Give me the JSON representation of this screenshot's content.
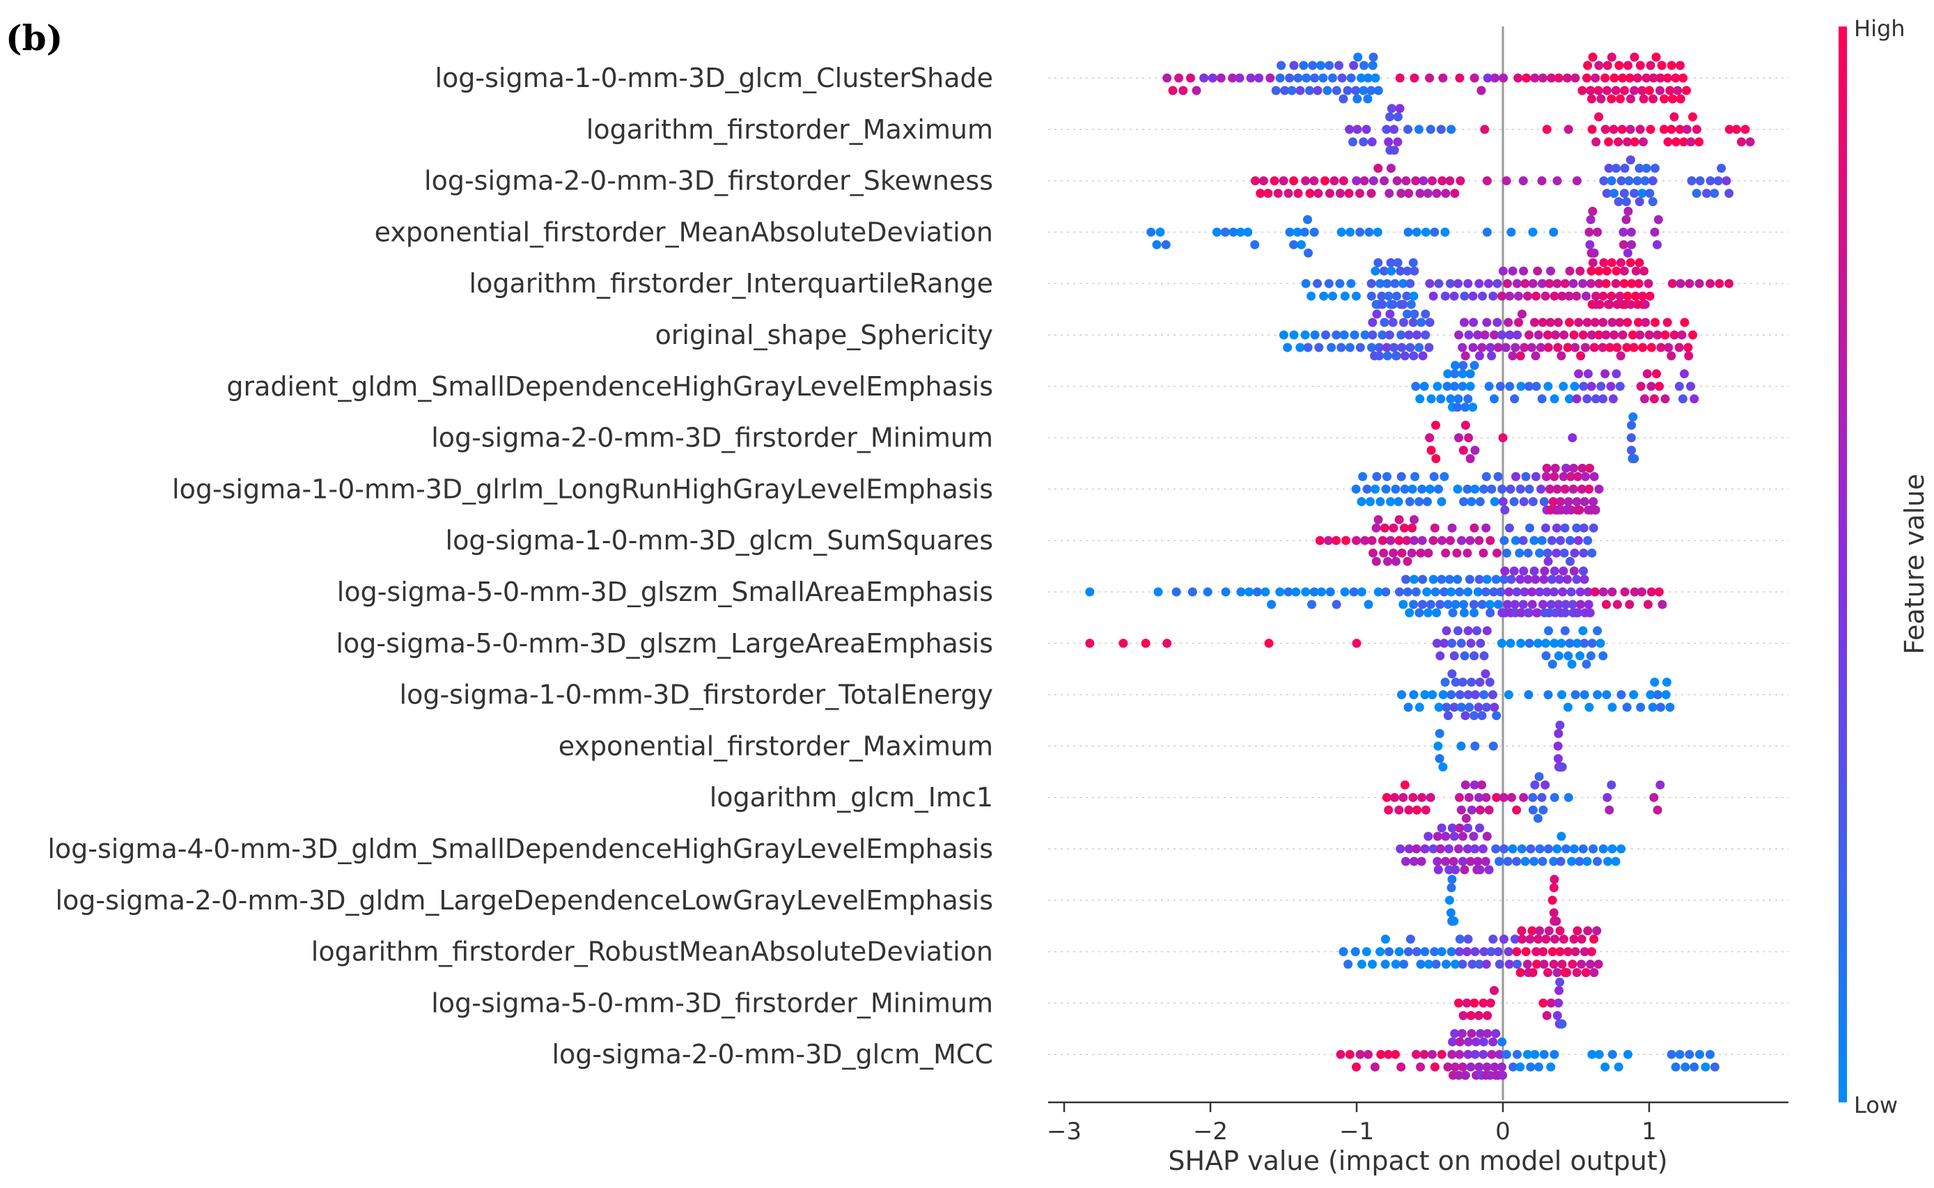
{
  "panel_label": "(b)",
  "chart_data": {
    "type": "scatter",
    "subtype": "shap-beeswarm",
    "xlabel": "SHAP value (impact on model output)",
    "xlim": [
      -3.1,
      1.9
    ],
    "xticks": [
      -3,
      -2,
      -1,
      0,
      1
    ],
    "xtick_labels": [
      "−3",
      "−2",
      "−1",
      "0",
      "1"
    ],
    "colorbar": {
      "label": "Feature value",
      "high": "High",
      "low": "Low",
      "high_color": "#ff0052",
      "low_color": "#008bfb"
    },
    "features": [
      {
        "name": "log-sigma-1-0-mm-3D_glcm_ClusterShade",
        "clusters": [
          {
            "from": -2.3,
            "to": -2.1,
            "n": 6,
            "c": 0.75
          },
          {
            "from": -2.05,
            "to": -1.6,
            "n": 8,
            "c": 0.55
          },
          {
            "from": -1.55,
            "to": -1.0,
            "n": 28,
            "c": 0.25
          },
          {
            "from": -1.0,
            "to": -0.85,
            "n": 12,
            "c": 0.05
          },
          {
            "from": -0.7,
            "to": -0.3,
            "n": 5,
            "c": 0.8
          },
          {
            "from": -0.2,
            "to": 0.0,
            "n": 5,
            "c": 0.6
          },
          {
            "from": 0.1,
            "to": 0.5,
            "n": 8,
            "c": 0.85
          },
          {
            "from": 0.55,
            "to": 1.25,
            "n": 50,
            "c": 0.92
          }
        ]
      },
      {
        "name": "logarithm_firstorder_Maximum",
        "clusters": [
          {
            "from": -1.05,
            "to": -0.9,
            "n": 6,
            "c": 0.35
          },
          {
            "from": -0.8,
            "to": -0.7,
            "n": 10,
            "c": 0.4
          },
          {
            "from": -0.65,
            "to": -0.35,
            "n": 5,
            "c": 0.2
          },
          {
            "from": -0.15,
            "to": -0.1,
            "n": 1,
            "c": 0.85
          },
          {
            "from": 0.3,
            "to": 0.45,
            "n": 2,
            "c": 0.9
          },
          {
            "from": 0.6,
            "to": 1.0,
            "n": 14,
            "c": 0.9
          },
          {
            "from": 1.1,
            "to": 1.35,
            "n": 12,
            "c": 0.9
          },
          {
            "from": 1.55,
            "to": 1.7,
            "n": 5,
            "c": 0.9
          }
        ]
      },
      {
        "name": "log-sigma-2-0-mm-3D_firstorder_Skewness",
        "clusters": [
          {
            "from": -1.7,
            "to": -1.05,
            "n": 20,
            "c": 0.92
          },
          {
            "from": -1.0,
            "to": -0.3,
            "n": 24,
            "c": 0.7
          },
          {
            "from": -0.1,
            "to": 0.5,
            "n": 6,
            "c": 0.75
          },
          {
            "from": 0.7,
            "to": 1.05,
            "n": 24,
            "c": 0.2
          },
          {
            "from": 1.3,
            "to": 1.55,
            "n": 10,
            "c": 0.3
          }
        ]
      },
      {
        "name": "exponential_firstorder_MeanAbsoluteDeviation",
        "clusters": [
          {
            "from": -2.4,
            "to": -2.3,
            "n": 4,
            "c": 0.05
          },
          {
            "from": -1.95,
            "to": -1.7,
            "n": 6,
            "c": 0.05
          },
          {
            "from": -1.45,
            "to": -1.3,
            "n": 8,
            "c": 0.05
          },
          {
            "from": -1.1,
            "to": -0.85,
            "n": 5,
            "c": 0.05
          },
          {
            "from": -0.65,
            "to": -0.4,
            "n": 5,
            "c": 0.05
          },
          {
            "from": -0.1,
            "to": 0.35,
            "n": 4,
            "c": 0.05
          },
          {
            "from": 0.58,
            "to": 0.64,
            "n": 8,
            "c": 0.6
          },
          {
            "from": 0.82,
            "to": 0.88,
            "n": 7,
            "c": 0.6
          },
          {
            "from": 1.03,
            "to": 1.07,
            "n": 3,
            "c": 0.5
          }
        ]
      },
      {
        "name": "logarithm_firstorder_InterquartileRange",
        "clusters": [
          {
            "from": -1.35,
            "to": -1.0,
            "n": 10,
            "c": 0.1
          },
          {
            "from": -0.9,
            "to": -0.6,
            "n": 30,
            "c": 0.15
          },
          {
            "from": -0.5,
            "to": 0.0,
            "n": 16,
            "c": 0.45
          },
          {
            "from": 0.0,
            "to": 0.6,
            "n": 28,
            "c": 0.75
          },
          {
            "from": 0.6,
            "to": 1.0,
            "n": 40,
            "c": 0.92
          },
          {
            "from": 1.15,
            "to": 1.55,
            "n": 7,
            "c": 0.85
          }
        ]
      },
      {
        "name": "original_shape_Sphericity",
        "clusters": [
          {
            "from": -1.5,
            "to": -0.9,
            "n": 18,
            "c": 0.1
          },
          {
            "from": -0.9,
            "to": -0.5,
            "n": 34,
            "c": 0.3
          },
          {
            "from": -0.3,
            "to": 0.1,
            "n": 24,
            "c": 0.55
          },
          {
            "from": 0.1,
            "to": 0.8,
            "n": 40,
            "c": 0.82
          },
          {
            "from": 0.8,
            "to": 1.3,
            "n": 26,
            "c": 0.92
          }
        ]
      },
      {
        "name": "gradient_gldm_SmallDependenceHighGrayLevelEmphasis",
        "clusters": [
          {
            "from": -0.6,
            "to": -0.42,
            "n": 6,
            "c": 0.05
          },
          {
            "from": -0.38,
            "to": -0.2,
            "n": 18,
            "c": 0.05
          },
          {
            "from": -0.1,
            "to": 0.5,
            "n": 14,
            "c": 0.1
          },
          {
            "from": 0.5,
            "to": 0.8,
            "n": 14,
            "c": 0.45
          },
          {
            "from": 0.95,
            "to": 1.1,
            "n": 8,
            "c": 0.85
          },
          {
            "from": 1.2,
            "to": 1.3,
            "n": 5,
            "c": 0.4
          }
        ]
      },
      {
        "name": "log-sigma-2-0-mm-3D_firstorder_Minimum",
        "clusters": [
          {
            "from": -0.5,
            "to": -0.45,
            "n": 4,
            "c": 0.9
          },
          {
            "from": -0.3,
            "to": -0.2,
            "n": 6,
            "c": 0.75
          },
          {
            "from": -0.02,
            "to": 0.02,
            "n": 1,
            "c": 0.9
          },
          {
            "from": 0.45,
            "to": 0.5,
            "n": 1,
            "c": 0.6
          },
          {
            "from": 0.88,
            "to": 0.9,
            "n": 8,
            "c": 0.2
          }
        ]
      },
      {
        "name": "log-sigma-1-0-mm-3D_glrlm_LongRunHighGrayLevelEmphasis",
        "clusters": [
          {
            "from": -1.0,
            "to": -0.4,
            "n": 26,
            "c": 0.05
          },
          {
            "from": -0.3,
            "to": 0.0,
            "n": 12,
            "c": 0.1
          },
          {
            "from": 0.0,
            "to": 0.3,
            "n": 14,
            "c": 0.35
          },
          {
            "from": 0.3,
            "to": 0.65,
            "n": 40,
            "c": 0.72
          }
        ]
      },
      {
        "name": "log-sigma-1-0-mm-3D_glcm_SumSquares",
        "clusters": [
          {
            "from": -1.25,
            "to": -0.95,
            "n": 6,
            "c": 0.85
          },
          {
            "from": -0.9,
            "to": -0.6,
            "n": 22,
            "c": 0.8
          },
          {
            "from": -0.6,
            "to": -0.05,
            "n": 20,
            "c": 0.7
          },
          {
            "from": 0.0,
            "to": 0.3,
            "n": 12,
            "c": 0.2
          },
          {
            "from": 0.3,
            "to": 0.62,
            "n": 18,
            "c": 0.35
          }
        ]
      },
      {
        "name": "log-sigma-5-0-mm-3D_glszm_SmallAreaEmphasis",
        "clusters": [
          {
            "from": -2.85,
            "to": -2.8,
            "n": 1,
            "c": 0.05
          },
          {
            "from": -2.35,
            "to": -1.9,
            "n": 5,
            "c": 0.05
          },
          {
            "from": -1.8,
            "to": -1.3,
            "n": 10,
            "c": 0.05
          },
          {
            "from": -1.3,
            "to": -0.8,
            "n": 10,
            "c": 0.08
          },
          {
            "from": -0.7,
            "to": 0.0,
            "n": 45,
            "c": 0.12
          },
          {
            "from": 0.0,
            "to": 0.6,
            "n": 60,
            "c": 0.45
          },
          {
            "from": 0.6,
            "to": 1.1,
            "n": 14,
            "c": 0.8
          }
        ]
      },
      {
        "name": "log-sigma-5-0-mm-3D_glszm_LargeAreaEmphasis",
        "clusters": [
          {
            "from": -2.85,
            "to": -2.8,
            "n": 1,
            "c": 0.95
          },
          {
            "from": -2.6,
            "to": -2.3,
            "n": 3,
            "c": 0.95
          },
          {
            "from": -1.62,
            "to": -1.58,
            "n": 1,
            "c": 0.95
          },
          {
            "from": -1.02,
            "to": -0.98,
            "n": 1,
            "c": 0.95
          },
          {
            "from": -0.45,
            "to": -0.1,
            "n": 16,
            "c": 0.35
          },
          {
            "from": 0.0,
            "to": 0.3,
            "n": 6,
            "c": 0.05
          },
          {
            "from": 0.3,
            "to": 0.68,
            "n": 20,
            "c": 0.05
          }
        ]
      },
      {
        "name": "log-sigma-1-0-mm-3D_firstorder_TotalEnergy",
        "clusters": [
          {
            "from": -0.7,
            "to": -0.4,
            "n": 8,
            "c": 0.05
          },
          {
            "from": -0.4,
            "to": -0.05,
            "n": 26,
            "c": 0.3
          },
          {
            "from": 0.05,
            "to": 0.3,
            "n": 3,
            "c": 0.05
          },
          {
            "from": 0.4,
            "to": 0.95,
            "n": 12,
            "c": 0.05
          },
          {
            "from": 1.0,
            "to": 1.15,
            "n": 8,
            "c": 0.05
          }
        ]
      },
      {
        "name": "exponential_firstorder_Maximum",
        "clusters": [
          {
            "from": -0.45,
            "to": -0.42,
            "n": 4,
            "c": 0.05
          },
          {
            "from": -0.28,
            "to": -0.2,
            "n": 2,
            "c": 0.05
          },
          {
            "from": -0.08,
            "to": -0.05,
            "n": 1,
            "c": 0.05
          },
          {
            "from": 0.38,
            "to": 0.4,
            "n": 10,
            "c": 0.45
          }
        ]
      },
      {
        "name": "logarithm_glcm_Imc1",
        "clusters": [
          {
            "from": -0.8,
            "to": -0.5,
            "n": 12,
            "c": 0.85
          },
          {
            "from": -0.3,
            "to": -0.1,
            "n": 12,
            "c": 0.7
          },
          {
            "from": -0.05,
            "to": 0.15,
            "n": 5,
            "c": 0.85
          },
          {
            "from": 0.2,
            "to": 0.28,
            "n": 8,
            "c": 0.3
          },
          {
            "from": 0.35,
            "to": 0.45,
            "n": 2,
            "c": 0.1
          },
          {
            "from": 0.72,
            "to": 0.75,
            "n": 3,
            "c": 0.5
          },
          {
            "from": 1.03,
            "to": 1.07,
            "n": 3,
            "c": 0.65
          }
        ]
      },
      {
        "name": "log-sigma-4-0-mm-3D_gldm_SmallDependenceHighGrayLevelEmphasis",
        "clusters": [
          {
            "from": -0.7,
            "to": -0.45,
            "n": 10,
            "c": 0.5
          },
          {
            "from": -0.45,
            "to": -0.1,
            "n": 30,
            "c": 0.55
          },
          {
            "from": -0.05,
            "to": 0.4,
            "n": 16,
            "c": 0.1
          },
          {
            "from": 0.4,
            "to": 0.8,
            "n": 14,
            "c": 0.05
          }
        ]
      },
      {
        "name": "log-sigma-2-0-mm-3D_gldm_LargeDependenceLowGrayLevelEmphasis",
        "clusters": [
          {
            "from": -0.36,
            "to": -0.34,
            "n": 14,
            "c": 0.05
          },
          {
            "from": 0.34,
            "to": 0.36,
            "n": 10,
            "c": 0.9
          }
        ]
      },
      {
        "name": "logarithm_firstorder_RobustMeanAbsoluteDeviation",
        "clusters": [
          {
            "from": -1.1,
            "to": -0.8,
            "n": 8,
            "c": 0.05
          },
          {
            "from": -0.8,
            "to": -0.3,
            "n": 18,
            "c": 0.1
          },
          {
            "from": -0.3,
            "to": 0.1,
            "n": 18,
            "c": 0.35
          },
          {
            "from": 0.1,
            "to": 0.65,
            "n": 46,
            "c": 0.85
          }
        ]
      },
      {
        "name": "log-sigma-5-0-mm-3D_firstorder_Minimum",
        "clusters": [
          {
            "from": -0.3,
            "to": -0.05,
            "n": 10,
            "c": 0.9
          },
          {
            "from": 0.28,
            "to": 0.32,
            "n": 3,
            "c": 0.9
          },
          {
            "from": 0.38,
            "to": 0.4,
            "n": 10,
            "c": 0.4
          }
        ]
      },
      {
        "name": "log-sigma-2-0-mm-3D_glcm_MCC",
        "clusters": [
          {
            "from": -1.1,
            "to": -0.7,
            "n": 10,
            "c": 0.85
          },
          {
            "from": -0.6,
            "to": -0.35,
            "n": 8,
            "c": 0.85
          },
          {
            "from": -0.35,
            "to": 0.0,
            "n": 36,
            "c": 0.55
          },
          {
            "from": 0.0,
            "to": 0.35,
            "n": 12,
            "c": 0.1
          },
          {
            "from": 0.6,
            "to": 0.85,
            "n": 6,
            "c": 0.05
          },
          {
            "from": 1.15,
            "to": 1.45,
            "n": 10,
            "c": 0.1
          }
        ]
      }
    ]
  }
}
